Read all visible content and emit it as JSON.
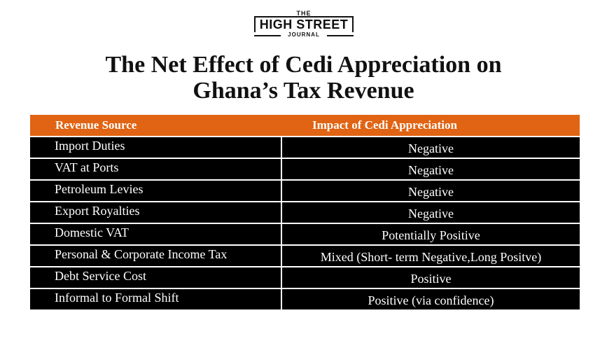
{
  "logo": {
    "top": "THE",
    "main": "HIGH STREET",
    "bottom": "JOURNAL"
  },
  "title": {
    "line1": "The Net Effect of Cedi Appreciation on",
    "line2": "Ghana’s Tax Revenue"
  },
  "table": {
    "headers": [
      "Revenue Source",
      "Impact of Cedi Appreciation"
    ],
    "rows": [
      {
        "source": "Import Duties",
        "impact": "Negative"
      },
      {
        "source": "VAT at Ports",
        "impact": "Negative"
      },
      {
        "source": "Petroleum Levies",
        "impact": "Negative"
      },
      {
        "source": "Export Royalties",
        "impact": "Negative"
      },
      {
        "source": "Domestic VAT",
        "impact": "Potentially Positive"
      },
      {
        "source": "Personal & Corporate Income Tax",
        "impact": "Mixed (Short- term Negative,Long Positve)"
      },
      {
        "source": "Debt Service Cost",
        "impact": "Positive"
      },
      {
        "source": "Informal to Formal Shift",
        "impact": "Positive (via confidence)"
      }
    ]
  },
  "colors": {
    "header_bg": "#e06413",
    "row_bg": "#000000",
    "text_light": "#ffffff"
  }
}
